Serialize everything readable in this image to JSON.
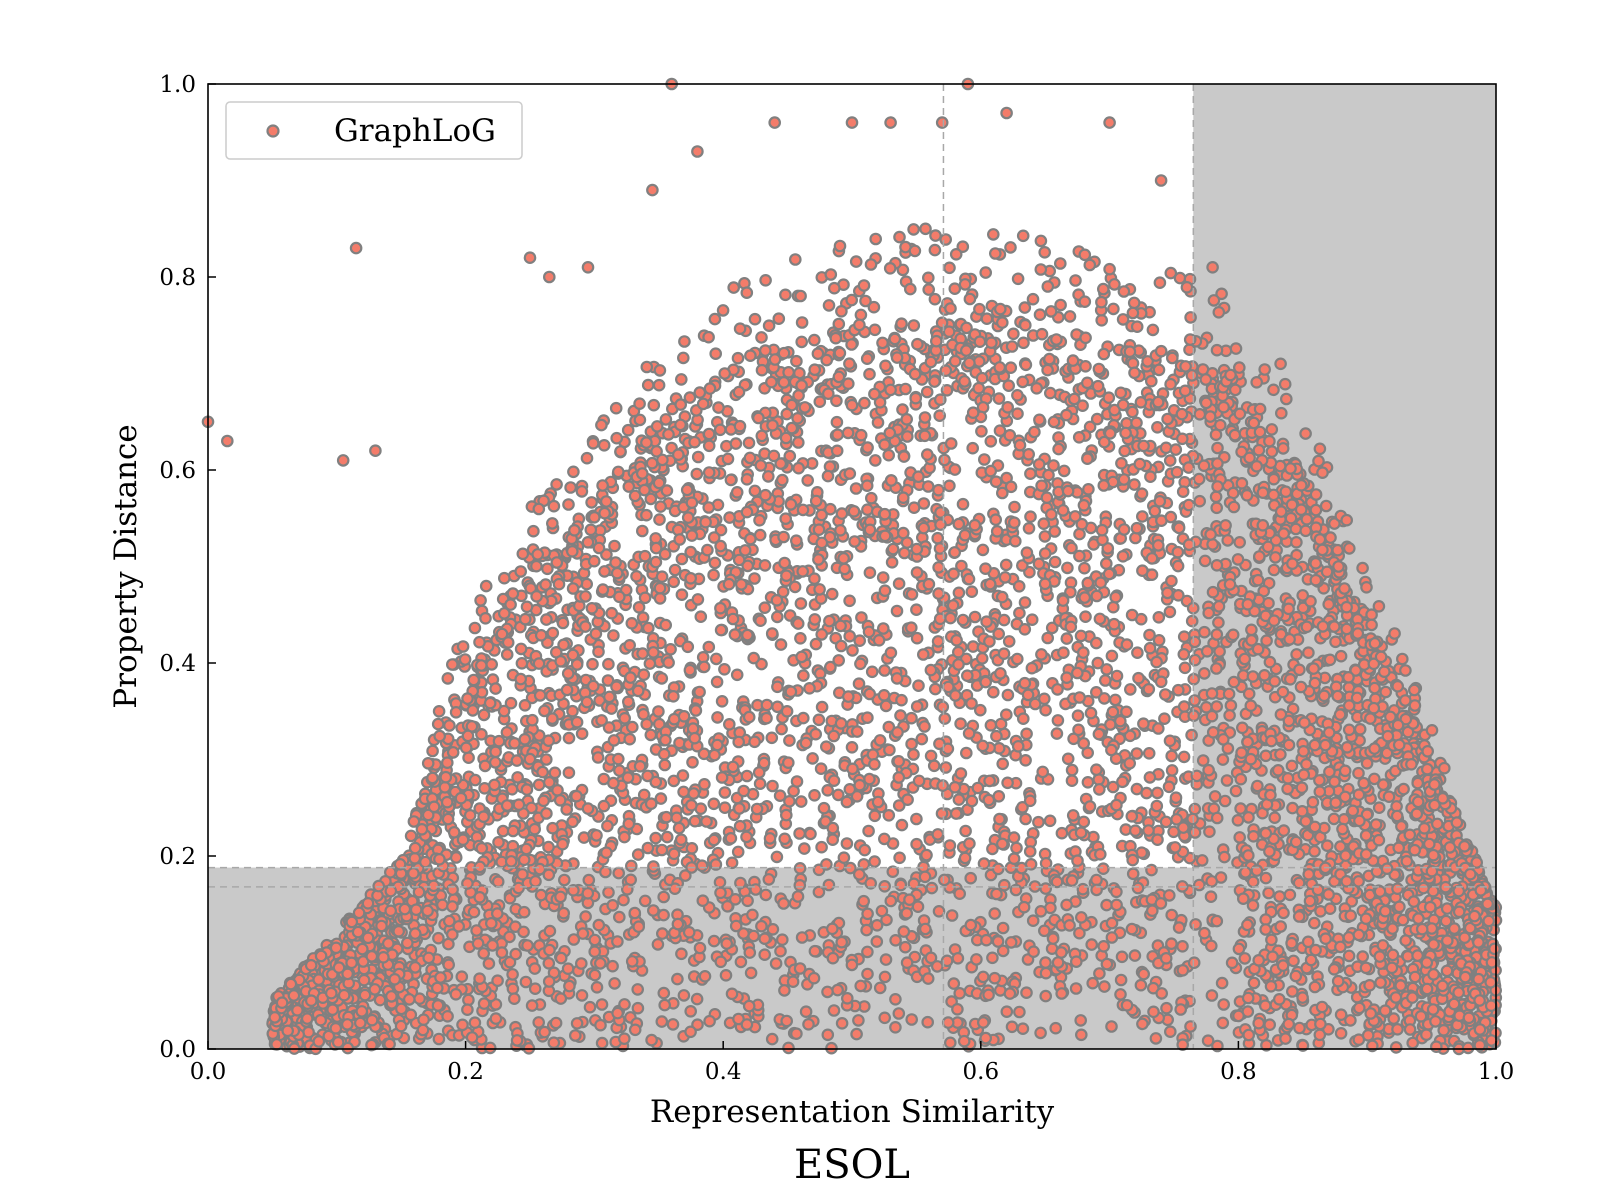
{
  "chart_data": {
    "type": "scatter",
    "title": "ESOL",
    "xlabel": "Representation Similarity",
    "ylabel": "Property Distance",
    "xlim": [
      0.0,
      1.0
    ],
    "ylim": [
      0.0,
      1.0
    ],
    "x_ticks": [
      "0.0",
      "0.2",
      "0.4",
      "0.6",
      "0.8",
      "1.0"
    ],
    "y_ticks": [
      "0.0",
      "0.2",
      "0.4",
      "0.6",
      "0.8",
      "1.0"
    ],
    "grid": false,
    "legend_position": "top-left",
    "series": [
      {
        "name": "GraphLoG",
        "marker_fill": "#f47c6a",
        "marker_edge": "#808080",
        "density_envelope": {
          "x": [
            0.05,
            0.1,
            0.15,
            0.2,
            0.25,
            0.3,
            0.35,
            0.4,
            0.45,
            0.5,
            0.55,
            0.6,
            0.65,
            0.7,
            0.75,
            0.8,
            0.85,
            0.9,
            0.95,
            1.0
          ],
          "y_max": [
            0.05,
            0.12,
            0.2,
            0.4,
            0.5,
            0.57,
            0.65,
            0.7,
            0.73,
            0.75,
            0.76,
            0.76,
            0.75,
            0.74,
            0.72,
            0.7,
            0.6,
            0.45,
            0.3,
            0.15
          ]
        },
        "outliers": [
          [
            0.0,
            0.65
          ],
          [
            0.015,
            0.63
          ],
          [
            0.105,
            0.61
          ],
          [
            0.115,
            0.83
          ],
          [
            0.13,
            0.62
          ],
          [
            0.25,
            0.82
          ],
          [
            0.265,
            0.8
          ],
          [
            0.295,
            0.81
          ],
          [
            0.345,
            0.89
          ],
          [
            0.36,
            1.0
          ],
          [
            0.38,
            0.93
          ],
          [
            0.44,
            0.96
          ],
          [
            0.5,
            0.96
          ],
          [
            0.53,
            0.96
          ],
          [
            0.57,
            0.96
          ],
          [
            0.59,
            1.0
          ],
          [
            0.62,
            0.97
          ],
          [
            0.7,
            0.96
          ],
          [
            0.74,
            0.9
          ],
          [
            0.78,
            0.81
          ]
        ]
      }
    ],
    "shaded_regions": [
      {
        "x": [
          0.765,
          1.0
        ],
        "y": [
          0.0,
          1.0
        ],
        "color": "#c9c9c9"
      },
      {
        "x": [
          0.0,
          1.0
        ],
        "y": [
          0.0,
          0.188
        ],
        "color": "#c9c9c9"
      }
    ],
    "reference_lines": [
      {
        "orientation": "vertical",
        "value": 0.571
      },
      {
        "orientation": "vertical",
        "value": 0.765
      },
      {
        "orientation": "horizontal",
        "value": 0.188
      },
      {
        "orientation": "horizontal",
        "value": 0.168
      }
    ]
  }
}
